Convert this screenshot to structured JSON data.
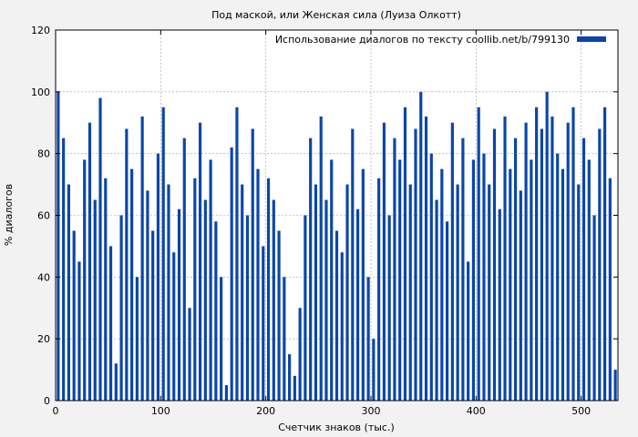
{
  "chart_data": {
    "type": "bar",
    "title": "Под маской, или Женская сила (Луиза Олкотт)",
    "xlabel": "Счетчик знаков (тыс.)",
    "ylabel": "% диалогов",
    "xlim": [
      0,
      535
    ],
    "ylim": [
      0,
      120
    ],
    "xticks": [
      0,
      100,
      200,
      300,
      400,
      500
    ],
    "yticks": [
      0,
      20,
      40,
      60,
      80,
      100,
      120
    ],
    "grid": true,
    "legend_position": "top-right",
    "color": "#0a46aa",
    "series": [
      {
        "name": "Использование диалогов по тексту coollib.net/b/799130",
        "x": [
          0,
          5,
          10,
          15,
          20,
          25,
          30,
          35,
          40,
          45,
          50,
          55,
          60,
          65,
          70,
          75,
          80,
          85,
          90,
          95,
          100,
          105,
          110,
          115,
          120,
          125,
          130,
          135,
          140,
          145,
          150,
          155,
          160,
          165,
          170,
          175,
          180,
          185,
          190,
          195,
          200,
          205,
          210,
          215,
          220,
          225,
          230,
          235,
          240,
          245,
          250,
          255,
          260,
          265,
          270,
          275,
          280,
          285,
          290,
          295,
          300,
          305,
          310,
          315,
          320,
          325,
          330,
          335,
          340,
          345,
          350,
          355,
          360,
          365,
          370,
          375,
          380,
          385,
          390,
          395,
          400,
          405,
          410,
          415,
          420,
          425,
          430,
          435,
          440,
          445,
          450,
          455,
          460,
          465,
          470,
          475,
          480,
          485,
          490,
          495,
          500,
          505,
          510,
          515,
          520,
          525,
          530
        ],
        "values": [
          100,
          85,
          70,
          55,
          45,
          78,
          90,
          65,
          98,
          72,
          50,
          12,
          60,
          88,
          75,
          40,
          92,
          68,
          55,
          80,
          95,
          70,
          48,
          62,
          85,
          30,
          72,
          90,
          65,
          78,
          58,
          40,
          5,
          82,
          95,
          70,
          60,
          88,
          75,
          50,
          72,
          65,
          55,
          40,
          15,
          8,
          30,
          60,
          85,
          70,
          92,
          65,
          78,
          55,
          48,
          70,
          88,
          62,
          75,
          40,
          20,
          72,
          90,
          60,
          85,
          78,
          95,
          70,
          88,
          100,
          92,
          80,
          65,
          75,
          58,
          90,
          70,
          85,
          45,
          78,
          95,
          80,
          70,
          88,
          62,
          92,
          75,
          85,
          68,
          90,
          78,
          95,
          88,
          100,
          92,
          80,
          75,
          90,
          95,
          70,
          85,
          78,
          60,
          88,
          95,
          72,
          10
        ]
      }
    ]
  }
}
